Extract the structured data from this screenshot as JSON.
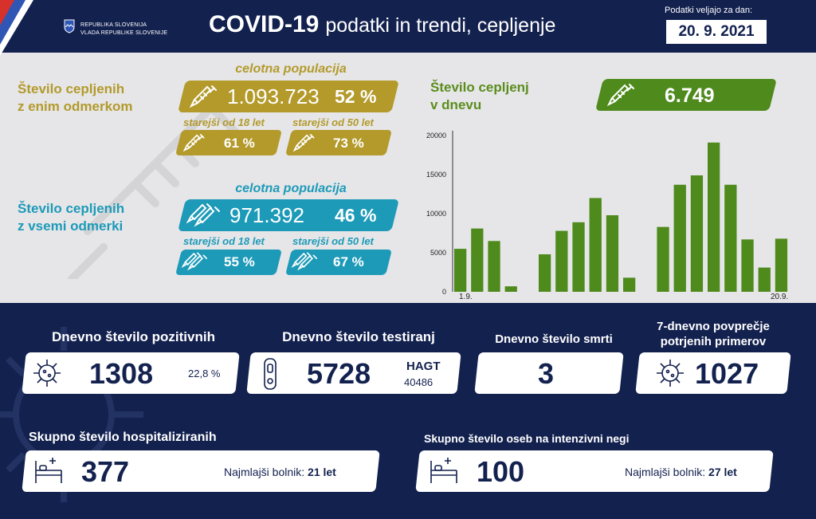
{
  "header": {
    "gov_line1": "REPUBLIKA SLOVENIJA",
    "gov_line2": "VLADA REPUBLIKE SLOVENIJE",
    "title_bold": "COVID-19",
    "title_rest": "podatki in trendi, cepljenje",
    "date_label": "Podatki veljajo za dan:",
    "date": "20. 9. 2021"
  },
  "one_dose": {
    "label_line1": "Število cepljenih",
    "label_line2": "z enim odmerkom",
    "pop_label": "celotna populacija",
    "total": "1.093.723",
    "total_pct": "52 %",
    "age18_label": "starejši od 18 let",
    "age18_pct": "61 %",
    "age50_label": "starejši od 50 let",
    "age50_pct": "73 %",
    "color": "#b39a2b"
  },
  "all_doses": {
    "label_line1": "Število cepljenih",
    "label_line2": "z vsemi odmerki",
    "pop_label": "celotna populacija",
    "total": "971.392",
    "total_pct": "46 %",
    "age18_label": "starejši od 18 let",
    "age18_pct": "55 %",
    "age50_label": "starejši od 50 let",
    "age50_pct": "67 %",
    "color": "#1d9ab8"
  },
  "daily": {
    "label_line1": "Število cepljenj",
    "label_line2": "v dnevu",
    "value": "6.749",
    "color": "#5b8d1d"
  },
  "chart_data": {
    "type": "bar",
    "x_first": "1.9.",
    "x_last": "20.9.",
    "ylim": [
      0,
      20000
    ],
    "yticks": [
      "0",
      "5000",
      "10000",
      "15000",
      "20000"
    ],
    "values": [
      5500,
      8100,
      6500,
      700,
      0,
      4800,
      7800,
      8900,
      12000,
      9800,
      1800,
      0,
      8300,
      13700,
      14900,
      19100,
      13700,
      6700,
      3100,
      6800
    ],
    "color": "#4e8a1c"
  },
  "stats": {
    "positive_title": "Dnevno število pozitivnih",
    "positive_value": "1308",
    "positive_pct": "22,8 %",
    "tests_title": "Dnevno število testiranj",
    "tests_value": "5728",
    "tests_hagt_label": "HAGT",
    "tests_hagt_value": "40486",
    "deaths_title": "Dnevno število smrti",
    "deaths_value": "3",
    "avg_title_line1": "7-dnevno povprečje",
    "avg_title_line2": "potrjenih primerov",
    "avg_value": "1027",
    "hosp_title": "Skupno število hospitaliziranih",
    "hosp_value": "377",
    "hosp_youngest_label": "Najmlajši bolnik:",
    "hosp_youngest_value": "21 let",
    "icu_title": "Skupno število oseb na intenzivni negi",
    "icu_value": "100",
    "icu_youngest_label": "Najmlajši bolnik:",
    "icu_youngest_value": "27 let"
  }
}
